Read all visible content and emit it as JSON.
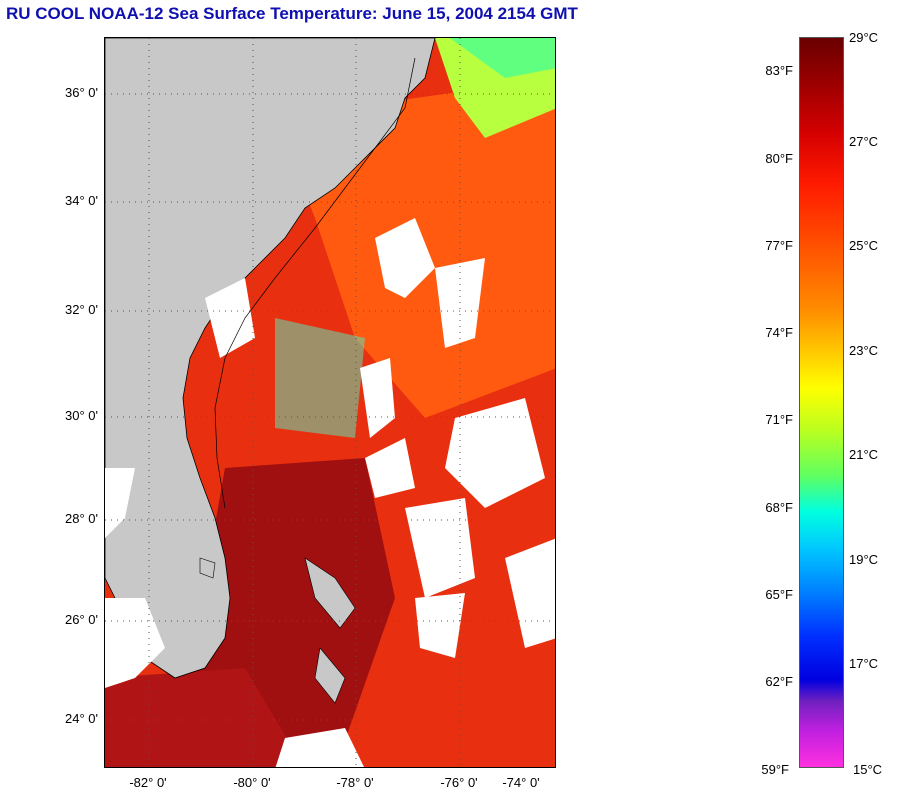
{
  "title": "RU COOL  NOAA-12  Sea Surface Temperature:  June 15, 2004 2154 GMT",
  "map": {
    "latitude_labels": [
      "36° 0'",
      "34° 0'",
      "32° 0'",
      "30° 0'",
      "28° 0'",
      "26° 0'",
      "24° 0'"
    ],
    "longitude_labels": [
      "-82° 0'",
      "-80° 0'",
      "-78° 0'",
      "-76° 0'",
      "-74° 0'"
    ],
    "land_color": "#c8c8c8",
    "cloud_color": "#ffffff",
    "grid": "dotted"
  },
  "colorbar": {
    "celsius_labels": [
      "29°C",
      "27°C",
      "25°C",
      "23°C",
      "21°C",
      "19°C",
      "17°C",
      "15°C"
    ],
    "fahrenheit_labels": [
      "83°F",
      "80°F",
      "77°F",
      "74°F",
      "71°F",
      "68°F",
      "65°F",
      "62°F",
      "59°F"
    ],
    "range_celsius": [
      15,
      29
    ]
  }
}
